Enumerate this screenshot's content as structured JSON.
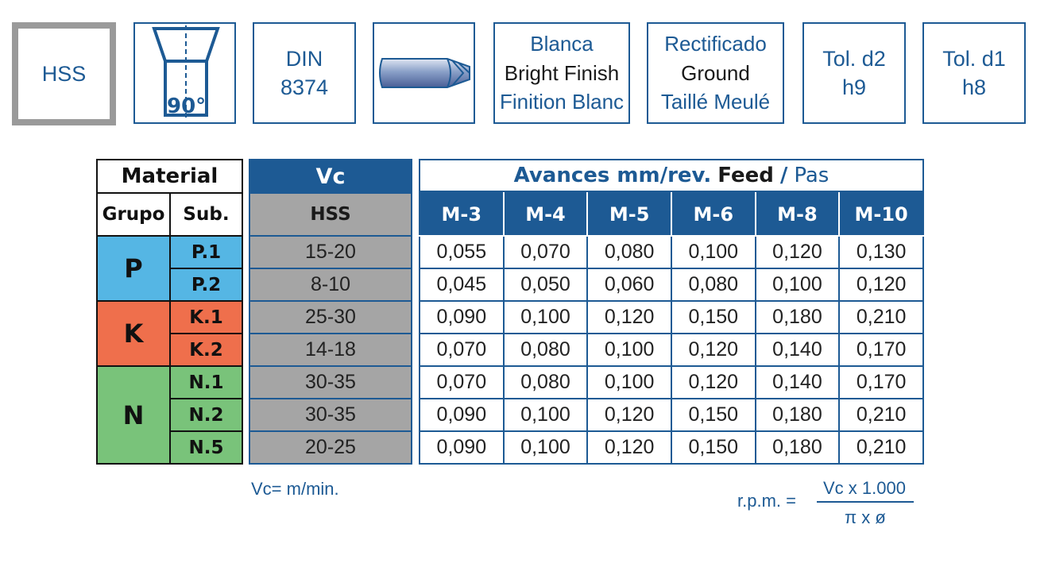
{
  "icons": {
    "material": "HSS",
    "angle": "90°",
    "din": [
      "DIN",
      "8374"
    ],
    "finish": [
      "Blanca",
      "Bright Finish",
      "Finition Blanc"
    ],
    "ground": [
      "Rectificado",
      "Ground",
      "Taillé Meulé"
    ],
    "tol_d2": [
      "Tol. d2",
      "h9"
    ],
    "tol_d1": [
      "Tol. d1",
      "h8"
    ]
  },
  "material_table": {
    "title": "Material",
    "col_group": "Grupo",
    "col_sub": "Sub.",
    "groups": [
      {
        "name": "P",
        "subs": [
          "P.1",
          "P.2"
        ]
      },
      {
        "name": "K",
        "subs": [
          "K.1",
          "K.2"
        ]
      },
      {
        "name": "N",
        "subs": [
          "N.1",
          "N.2",
          "N.5"
        ]
      }
    ]
  },
  "vc_table": {
    "title": "Vc",
    "sub": "HSS",
    "values": [
      "15-20",
      "8-10",
      "25-30",
      "14-18",
      "30-35",
      "30-35",
      "20-25"
    ]
  },
  "feed_table": {
    "title_bold": "Avances mm/rev.",
    "title_en": "Feed",
    "sep": "/",
    "title_fr": "Pas",
    "columns": [
      "M-3",
      "M-4",
      "M-5",
      "M-6",
      "M-8",
      "M-10"
    ],
    "rows": [
      [
        "0,055",
        "0,070",
        "0,080",
        "0,100",
        "0,120",
        "0,130"
      ],
      [
        "0,045",
        "0,050",
        "0,060",
        "0,080",
        "0,100",
        "0,120"
      ],
      [
        "0,090",
        "0,100",
        "0,120",
        "0,150",
        "0,180",
        "0,210"
      ],
      [
        "0,070",
        "0,080",
        "0,100",
        "0,120",
        "0,140",
        "0,170"
      ],
      [
        "0,070",
        "0,080",
        "0,100",
        "0,120",
        "0,140",
        "0,170"
      ],
      [
        "0,090",
        "0,100",
        "0,120",
        "0,150",
        "0,180",
        "0,210"
      ],
      [
        "0,090",
        "0,100",
        "0,120",
        "0,150",
        "0,180",
        "0,210"
      ]
    ]
  },
  "notes": {
    "vc_unit": "Vc= m/min.",
    "rpm_label": "r.p.m. =",
    "rpm_numerator": "Vc x 1.000",
    "rpm_denominator": "π x ø"
  },
  "colors": {
    "brand_blue": "#1d5a94",
    "group_p": "#55b6e4",
    "group_k": "#ef6f4c",
    "group_n": "#79c37a",
    "vc_gray": "#a5a5a5"
  }
}
